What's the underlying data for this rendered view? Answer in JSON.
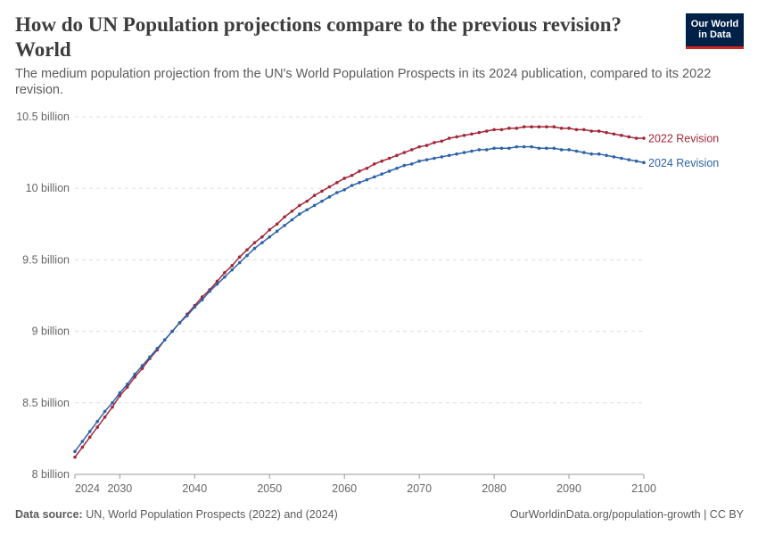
{
  "header": {
    "title": "How do UN Population projections compare to the previous revision? World",
    "subtitle": "The medium population projection from the UN's World Population Prospects in its 2024 publication, compared to its 2022 revision.",
    "logo": "Our World in Data"
  },
  "footer": {
    "source_label": "Data source:",
    "source": "UN, World Population Prospects (2022) and (2024)",
    "credit": "OurWorldinData.org/population-growth | CC BY"
  },
  "chart_data": {
    "type": "line",
    "title": "How do UN Population projections compare to the previous revision? World",
    "xlabel": "",
    "ylabel": "",
    "xlim": [
      2024,
      2100
    ],
    "ylim": [
      8,
      10.5
    ],
    "grid": "horizontal dashed",
    "legend": "inline-right",
    "x_ticks": [
      2024,
      2030,
      2040,
      2050,
      2060,
      2070,
      2080,
      2090,
      2100
    ],
    "y_ticks": [
      {
        "v": 8,
        "label": "8 billion"
      },
      {
        "v": 8.5,
        "label": "8.5 billion"
      },
      {
        "v": 9,
        "label": "9 billion"
      },
      {
        "v": 9.5,
        "label": "9.5 billion"
      },
      {
        "v": 10,
        "label": "10 billion"
      },
      {
        "v": 10.5,
        "label": "10.5 billion"
      }
    ],
    "x_start": 2024,
    "series": [
      {
        "name": "2022 Revision",
        "color": "#a2283a",
        "values": [
          8.12,
          8.19,
          8.26,
          8.33,
          8.4,
          8.47,
          8.55,
          8.61,
          8.68,
          8.74,
          8.81,
          8.87,
          8.94,
          9.0,
          9.06,
          9.12,
          9.18,
          9.24,
          9.29,
          9.35,
          9.41,
          9.46,
          9.52,
          9.57,
          9.62,
          9.66,
          9.71,
          9.75,
          9.8,
          9.84,
          9.88,
          9.91,
          9.95,
          9.98,
          10.01,
          10.04,
          10.07,
          10.09,
          10.12,
          10.14,
          10.17,
          10.19,
          10.21,
          10.23,
          10.25,
          10.27,
          10.29,
          10.3,
          10.32,
          10.33,
          10.35,
          10.36,
          10.37,
          10.38,
          10.39,
          10.4,
          10.41,
          10.41,
          10.42,
          10.42,
          10.43,
          10.43,
          10.43,
          10.43,
          10.43,
          10.42,
          10.42,
          10.41,
          10.41,
          10.4,
          10.4,
          10.39,
          10.38,
          10.37,
          10.36,
          10.35,
          10.35
        ]
      },
      {
        "name": "2024 Revision",
        "color": "#2d63a8",
        "values": [
          8.16,
          8.23,
          8.3,
          8.37,
          8.44,
          8.5,
          8.57,
          8.63,
          8.7,
          8.76,
          8.82,
          8.88,
          8.94,
          9.0,
          9.06,
          9.11,
          9.17,
          9.22,
          9.28,
          9.33,
          9.38,
          9.43,
          9.48,
          9.53,
          9.58,
          9.62,
          9.66,
          9.7,
          9.74,
          9.78,
          9.82,
          9.85,
          9.88,
          9.91,
          9.94,
          9.97,
          9.99,
          10.02,
          10.04,
          10.06,
          10.08,
          10.1,
          10.12,
          10.14,
          10.16,
          10.17,
          10.19,
          10.2,
          10.21,
          10.22,
          10.23,
          10.24,
          10.25,
          10.26,
          10.27,
          10.27,
          10.28,
          10.28,
          10.28,
          10.29,
          10.29,
          10.29,
          10.28,
          10.28,
          10.28,
          10.27,
          10.27,
          10.26,
          10.25,
          10.24,
          10.24,
          10.23,
          10.22,
          10.21,
          10.2,
          10.19,
          10.18
        ]
      }
    ]
  }
}
